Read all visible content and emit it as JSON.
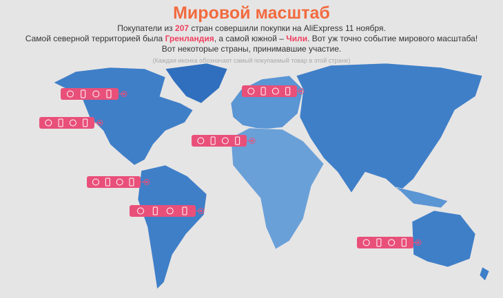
{
  "header": {
    "title": "Мировой масштаб",
    "lines": [
      [
        "Покупатели из ",
        "207",
        " стран совершили покупки на AliExpress 11 ноября."
      ],
      [
        "Самой северной территорией была ",
        "Гренландия",
        ", а самой южной – ",
        "Чили",
        ". Вот уж точно событие мирового масштаба!"
      ],
      [
        "Вот некоторые страны, принимавшие участие."
      ]
    ],
    "note": "(Каждая иконка обозначает самый покупаемый товар в этой стране)"
  }
}
